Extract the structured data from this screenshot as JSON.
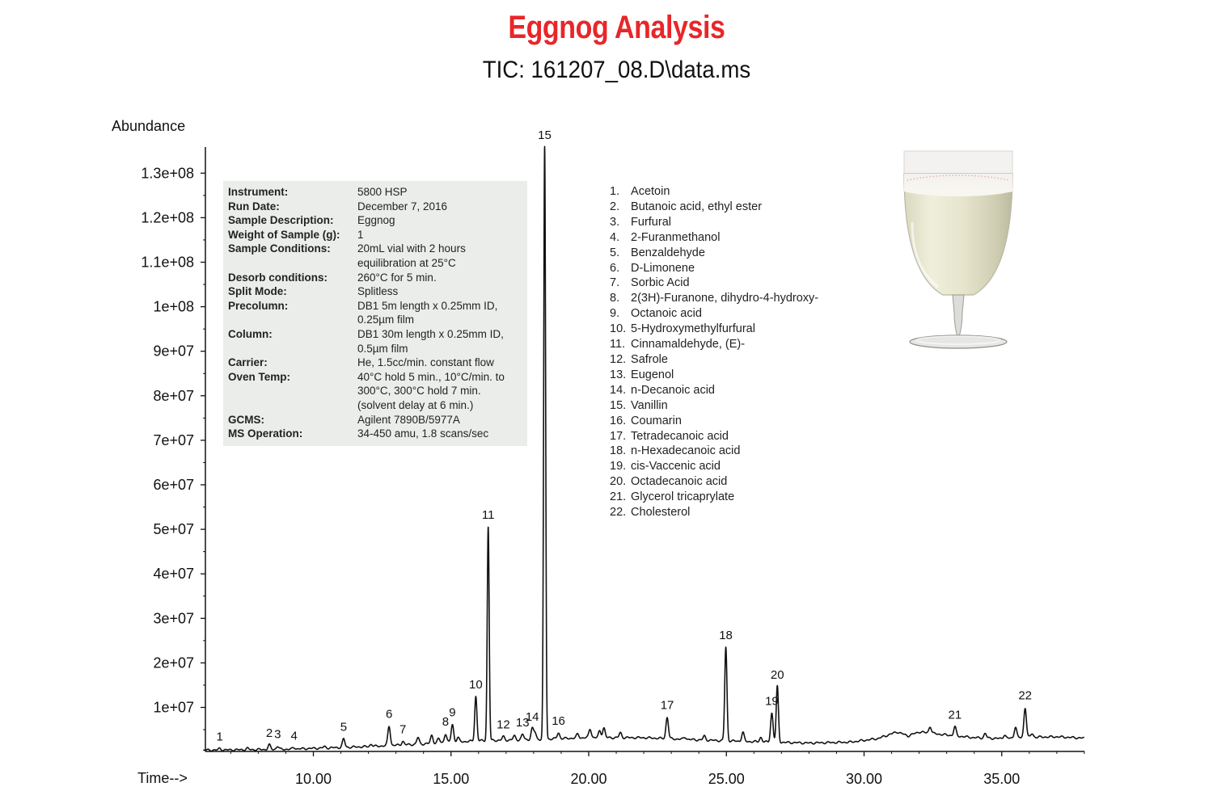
{
  "header": {
    "title": "Eggnog Analysis",
    "subtitle": "TIC: 161207_08.D\\data.ms"
  },
  "info_panel": {
    "rows": [
      {
        "key": "Instrument:",
        "value": "5800 HSP"
      },
      {
        "key": "Run Date:",
        "value": "December 7, 2016"
      },
      {
        "key": "Sample Description:",
        "value": "Eggnog"
      },
      {
        "key": "Weight of Sample (g):",
        "value": "1"
      },
      {
        "key": "Sample Conditions:",
        "value": "20mL vial with 2 hours\nequilibration at 25°C"
      },
      {
        "key": "Desorb conditions:",
        "value": "260°C for 5 min."
      },
      {
        "key": "Split Mode:",
        "value": "Splitless"
      },
      {
        "key": "Precolumn:",
        "value": "DB1 5m length x 0.25mm ID,\n0.25µm film"
      },
      {
        "key": "Column:",
        "value": "DB1 30m length x 0.25mm ID,\n0.5µm film"
      },
      {
        "key": "Carrier:",
        "value": "He, 1.5cc/min. constant flow"
      },
      {
        "key": "Oven Temp:",
        "value": "40°C hold 5 min., 10°C/min. to\n300°C, 300°C hold 7 min.\n(solvent delay at 6 min.)"
      },
      {
        "key": "GCMS:",
        "value": "Agilent 7890B/5977A"
      },
      {
        "key": "MS Operation:",
        "value": "34-450 amu, 1.8 scans/sec"
      }
    ]
  },
  "legend": [
    {
      "num": "1.",
      "name": "Acetoin"
    },
    {
      "num": "2.",
      "name": "Butanoic acid, ethyl ester"
    },
    {
      "num": "3.",
      "name": "Furfural"
    },
    {
      "num": "4.",
      "name": "2-Furanmethanol"
    },
    {
      "num": "5.",
      "name": "Benzaldehyde"
    },
    {
      "num": "6.",
      "name": "D-Limonene"
    },
    {
      "num": "7.",
      "name": "Sorbic Acid"
    },
    {
      "num": "8.",
      "name": "2(3H)-Furanone, dihydro-4-hydroxy-"
    },
    {
      "num": "9.",
      "name": "Octanoic acid"
    },
    {
      "num": "10.",
      "name": "5-Hydroxymethylfurfural"
    },
    {
      "num": "11.",
      "name": "Cinnamaldehyde, (E)-"
    },
    {
      "num": "12.",
      "name": "Safrole"
    },
    {
      "num": "13.",
      "name": "Eugenol"
    },
    {
      "num": "14.",
      "name": "n-Decanoic acid"
    },
    {
      "num": "15.",
      "name": "Vanillin"
    },
    {
      "num": "16.",
      "name": "Coumarin"
    },
    {
      "num": "17.",
      "name": "Tetradecanoic acid"
    },
    {
      "num": "18.",
      "name": "n-Hexadecanoic acid"
    },
    {
      "num": "19.",
      "name": "cis-Vaccenic acid"
    },
    {
      "num": "20.",
      "name": "Octadecanoic acid"
    },
    {
      "num": "21.",
      "name": "Glycerol tricaprylate"
    },
    {
      "num": "22.",
      "name": "Cholesterol"
    }
  ],
  "colors": {
    "title": "#e8262a",
    "trace": "#111111",
    "panel": "#ebedeb"
  },
  "chart_data": {
    "type": "line",
    "title": "TIC: 161207_08.D\\data.ms",
    "xlabel": "Time-->",
    "ylabel": "Abundance",
    "xlim": [
      6.0,
      38.0
    ],
    "ylim": [
      0,
      135000000
    ],
    "xticks": [
      10,
      15,
      20,
      25,
      30,
      35
    ],
    "xtick_labels": [
      "10.00",
      "15.00",
      "20.00",
      "25.00",
      "30.00",
      "35.00"
    ],
    "yticks": [
      10000000,
      20000000,
      30000000,
      40000000,
      50000000,
      60000000,
      70000000,
      80000000,
      90000000,
      100000000,
      110000000,
      120000000,
      130000000
    ],
    "ytick_labels": [
      "1e+07",
      "2e+07",
      "3e+07",
      "4e+07",
      "5e+07",
      "6e+07",
      "7e+07",
      "8e+07",
      "9e+07",
      "1e+08",
      "1.1e+08",
      "1.2e+08",
      "1.3e+08"
    ],
    "grid": false,
    "baseline": [
      [
        6.0,
        400000
      ],
      [
        9.0,
        600000
      ],
      [
        12.0,
        1200000
      ],
      [
        14.0,
        1800000
      ],
      [
        16.0,
        2500000
      ],
      [
        18.0,
        2800000
      ],
      [
        20.0,
        3200000
      ],
      [
        22.0,
        3200000
      ],
      [
        24.0,
        2700000
      ],
      [
        26.0,
        2300000
      ],
      [
        28.0,
        2000000
      ],
      [
        29.5,
        2200000
      ],
      [
        30.5,
        3000000
      ],
      [
        31.2,
        4500000
      ],
      [
        31.6,
        3600000
      ],
      [
        32.0,
        4500000
      ],
      [
        33.0,
        3800000
      ],
      [
        34.0,
        3200000
      ],
      [
        35.0,
        3000000
      ],
      [
        36.0,
        3300000
      ],
      [
        37.0,
        3400000
      ],
      [
        38.0,
        3100000
      ]
    ],
    "peaks": [
      {
        "label": "1",
        "rt": 6.6,
        "height": 300000
      },
      {
        "label": "2",
        "rt": 8.4,
        "height": 1000000
      },
      {
        "label": "3",
        "rt": 8.7,
        "height": 700000
      },
      {
        "label": "4",
        "rt": 9.3,
        "height": 300000
      },
      {
        "label": "5",
        "rt": 11.1,
        "height": 1900000
      },
      {
        "label": "6",
        "rt": 12.75,
        "height": 4400000
      },
      {
        "label": "7",
        "rt": 13.25,
        "height": 800000
      },
      {
        "label": "8",
        "rt": 14.8,
        "height": 2000000
      },
      {
        "label": "9",
        "rt": 15.05,
        "height": 4000000
      },
      {
        "label": "10",
        "rt": 15.9,
        "height": 10000000
      },
      {
        "label": "11",
        "rt": 16.35,
        "height": 48000000
      },
      {
        "label": "12",
        "rt": 16.9,
        "height": 800000
      },
      {
        "label": "13",
        "rt": 17.6,
        "height": 1200000
      },
      {
        "label": "14",
        "rt": 17.95,
        "height": 2400000
      },
      {
        "label": "15",
        "rt": 18.4,
        "height": 133000000
      },
      {
        "label": "16",
        "rt": 18.9,
        "height": 1300000
      },
      {
        "label": "17",
        "rt": 22.85,
        "height": 4800000
      },
      {
        "label": "18",
        "rt": 24.98,
        "height": 21000000
      },
      {
        "label": "19",
        "rt": 26.65,
        "height": 6500000
      },
      {
        "label": "20",
        "rt": 26.85,
        "height": 12500000
      },
      {
        "label": "21",
        "rt": 33.3,
        "height": 2000000
      },
      {
        "label": "22",
        "rt": 35.85,
        "height": 6700000
      }
    ],
    "minor_peaks": [
      {
        "rt": 7.6,
        "height": 300000
      },
      {
        "rt": 10.4,
        "height": 300000
      },
      {
        "rt": 12.1,
        "height": 500000
      },
      {
        "rt": 13.8,
        "height": 1500000
      },
      {
        "rt": 14.3,
        "height": 1800000
      },
      {
        "rt": 14.55,
        "height": 1000000
      },
      {
        "rt": 15.25,
        "height": 1000000
      },
      {
        "rt": 17.3,
        "height": 900000
      },
      {
        "rt": 18.05,
        "height": 1500000
      },
      {
        "rt": 19.6,
        "height": 900000
      },
      {
        "rt": 20.05,
        "height": 2000000
      },
      {
        "rt": 20.4,
        "height": 1500000
      },
      {
        "rt": 20.55,
        "height": 2200000
      },
      {
        "rt": 21.15,
        "height": 1100000
      },
      {
        "rt": 23.5,
        "height": 500000
      },
      {
        "rt": 24.2,
        "height": 900000
      },
      {
        "rt": 25.6,
        "height": 2000000
      },
      {
        "rt": 26.25,
        "height": 1000000
      },
      {
        "rt": 32.4,
        "height": 1500000
      },
      {
        "rt": 34.4,
        "height": 1000000
      },
      {
        "rt": 35.1,
        "height": 800000
      },
      {
        "rt": 35.5,
        "height": 2500000
      },
      {
        "rt": 36.1,
        "height": 800000
      }
    ]
  }
}
